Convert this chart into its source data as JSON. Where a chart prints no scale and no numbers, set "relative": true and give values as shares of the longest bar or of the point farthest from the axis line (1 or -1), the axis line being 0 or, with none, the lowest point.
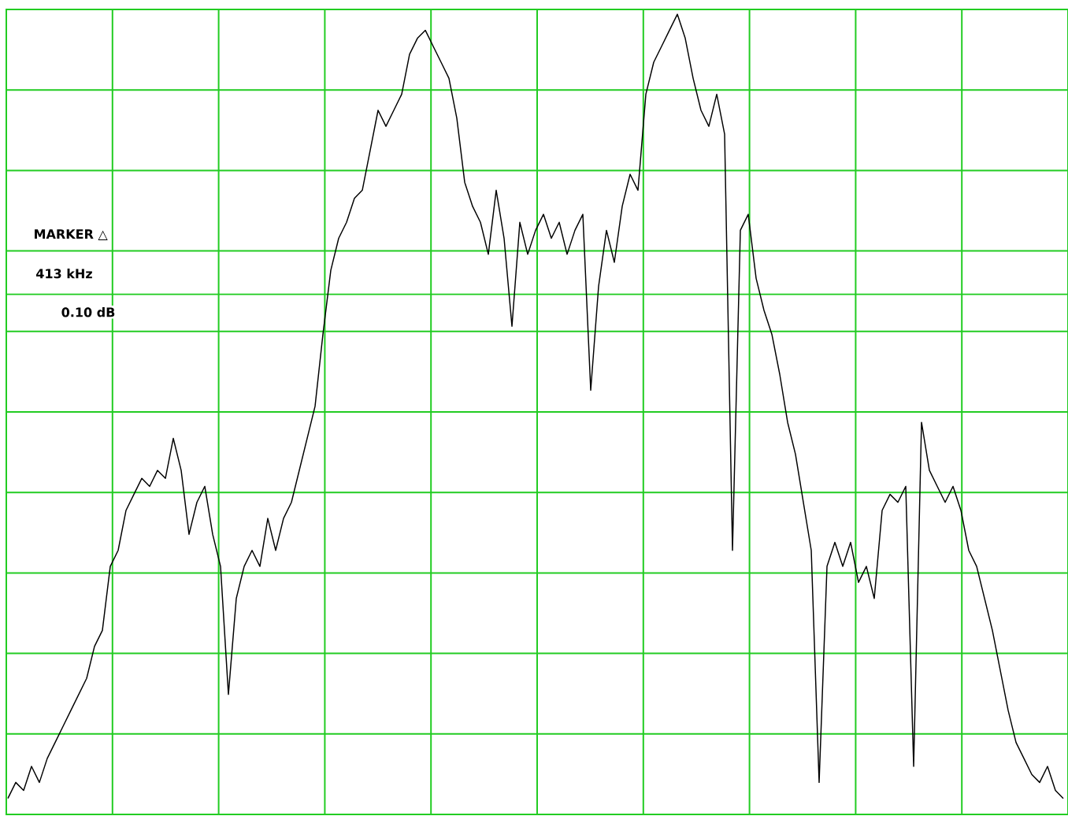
{
  "chart_data": {
    "type": "line",
    "relative": true,
    "grid": true,
    "annotations": [
      "MARKER △",
      "413 kHz",
      "0.10   dB"
    ],
    "ref_lines": [
      {
        "axis": "y",
        "value": 0.65,
        "color": "#22cc22"
      }
    ],
    "categories": [
      null,
      null,
      null,
      null,
      null,
      null,
      null,
      null,
      null,
      null,
      null,
      null,
      null,
      null,
      null,
      null,
      null,
      null,
      null,
      null,
      null,
      null,
      null,
      null,
      null,
      null,
      null,
      null,
      null,
      null,
      null,
      null,
      null,
      null,
      null,
      null,
      null,
      null,
      null,
      null,
      null,
      null,
      null,
      null,
      null,
      null,
      null,
      null,
      null,
      null,
      null,
      null,
      null,
      null,
      null,
      null,
      null,
      null,
      null,
      null,
      null,
      null,
      null,
      null,
      null,
      null,
      null,
      null,
      null,
      null,
      null,
      null,
      null,
      null,
      null,
      null,
      null,
      null,
      null,
      null,
      null,
      null,
      null,
      null,
      null,
      null,
      null,
      null,
      null,
      null,
      null,
      null,
      null,
      null,
      null,
      null,
      null,
      null,
      null,
      null,
      null,
      null,
      null,
      null,
      null,
      null,
      null,
      null,
      null,
      null,
      null,
      null,
      null,
      null,
      null,
      null,
      null,
      null,
      null,
      null,
      null,
      null,
      null,
      null,
      null,
      null,
      null,
      null,
      null,
      null,
      null,
      null,
      null,
      null,
      null
    ],
    "series": [
      {
        "color": "#000000",
        "values": [
          0.02,
          0.04,
          0.03,
          0.06,
          0.04,
          0.07,
          0.09,
          0.11,
          0.13,
          0.15,
          0.17,
          0.21,
          0.23,
          0.31,
          0.33,
          0.38,
          0.4,
          0.42,
          0.41,
          0.43,
          0.42,
          0.47,
          0.43,
          0.35,
          0.39,
          0.41,
          0.35,
          0.31,
          0.15,
          0.27,
          0.31,
          0.33,
          0.31,
          0.37,
          0.33,
          0.37,
          0.39,
          0.43,
          0.47,
          0.51,
          0.6,
          0.68,
          0.72,
          0.74,
          0.77,
          0.78,
          0.83,
          0.88,
          0.86,
          0.88,
          0.9,
          0.95,
          0.97,
          0.98,
          0.96,
          0.94,
          0.92,
          0.87,
          0.79,
          0.76,
          0.74,
          0.7,
          0.78,
          0.72,
          0.61,
          0.74,
          0.7,
          0.73,
          0.75,
          0.72,
          0.74,
          0.7,
          0.73,
          0.75,
          0.53,
          0.66,
          0.73,
          0.69,
          0.76,
          0.8,
          0.78,
          0.9,
          0.94,
          0.96,
          0.98,
          1,
          0.97,
          0.92,
          0.88,
          0.86,
          0.9,
          0.85,
          0.33,
          0.73,
          0.75,
          0.67,
          0.63,
          0.6,
          0.55,
          0.49,
          0.45,
          0.39,
          0.33,
          0.04,
          0.31,
          0.34,
          0.31,
          0.34,
          0.29,
          0.31,
          0.27,
          0.38,
          0.4,
          0.39,
          0.41,
          0.06,
          0.49,
          0.43,
          0.41,
          0.39,
          0.41,
          0.38,
          0.33,
          0.31,
          0.27,
          0.23,
          0.18,
          0.13,
          0.09,
          0.07,
          0.05,
          0.04,
          0.06,
          0.03,
          0.02
        ]
      }
    ]
  }
}
